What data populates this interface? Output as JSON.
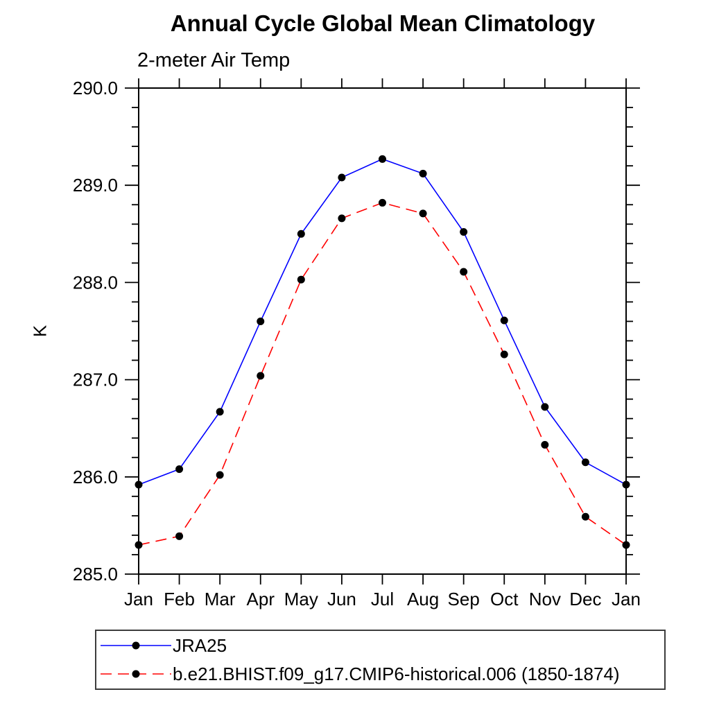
{
  "chart_data": {
    "type": "line",
    "title": "Annual Cycle Global Mean Climatology",
    "subtitle": "2-meter Air Temp",
    "ylabel": "K",
    "xlabel": "",
    "categories": [
      "Jan",
      "Feb",
      "Mar",
      "Apr",
      "May",
      "Jun",
      "Jul",
      "Aug",
      "Sep",
      "Oct",
      "Nov",
      "Dec",
      "Jan"
    ],
    "series": [
      {
        "name": "JRA25",
        "color": "#0000ff",
        "line_style": "solid",
        "marker": "filled-circle",
        "marker_color": "#000000",
        "values": [
          285.92,
          286.08,
          286.67,
          287.6,
          288.5,
          289.08,
          289.27,
          289.12,
          288.52,
          287.61,
          286.72,
          286.15,
          285.92
        ]
      },
      {
        "name": "b.e21.BHIST.f09_g17.CMIP6-historical.006 (1850-1874)",
        "color": "#ff0000",
        "line_style": "dashed",
        "marker": "filled-circle",
        "marker_color": "#000000",
        "values": [
          285.3,
          285.39,
          286.02,
          287.04,
          288.03,
          288.66,
          288.82,
          288.71,
          288.11,
          287.26,
          286.33,
          285.59,
          285.3
        ]
      }
    ],
    "ylim": [
      285.0,
      290.0
    ],
    "ytick_labels": [
      "285.0",
      "286.0",
      "287.0",
      "288.0",
      "289.0",
      "290.0"
    ],
    "ytick_major_step": 1.0,
    "ytick_minor_step": 0.2,
    "grid": false,
    "legend_position": "bottom-left",
    "axis_color": "#000000",
    "tick_direction": "out"
  }
}
